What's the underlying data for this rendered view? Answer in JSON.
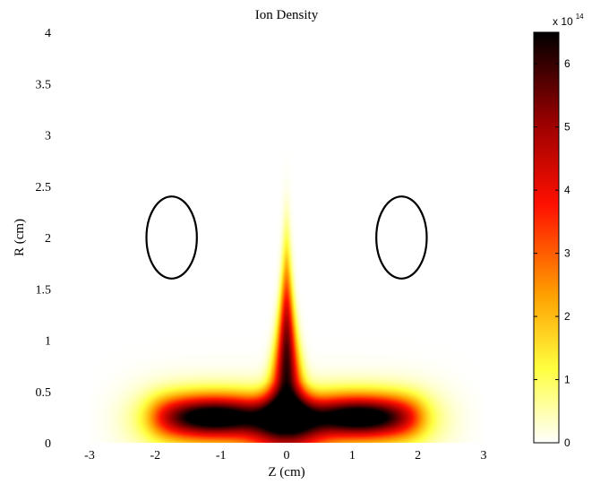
{
  "chart_data": {
    "type": "heatmap",
    "title": "Ion Density",
    "xlabel": "Z (cm)",
    "ylabel": "R (cm)",
    "xlim": [
      -3,
      3
    ],
    "ylim": [
      0,
      4
    ],
    "x_ticks": [
      "-3",
      "-2",
      "-1",
      "0",
      "1",
      "2",
      "3"
    ],
    "y_ticks": [
      "0",
      "0.5",
      "1",
      "1.5",
      "2",
      "2.5",
      "3",
      "3.5",
      "4"
    ],
    "colorbar": {
      "range": [
        0,
        6.5
      ],
      "ticks": [
        "0",
        "1",
        "2",
        "3",
        "4",
        "5",
        "6"
      ],
      "multiplier_base": "x 10",
      "multiplier_exponent": "14",
      "colormap": "hot-reversed",
      "colors": [
        "#ffffff",
        "#ffff00",
        "#ff8000",
        "#ff0000",
        "#800000",
        "#000000"
      ]
    },
    "peak_density": 6.5,
    "features": [
      {
        "kind": "radial-column",
        "z": 0,
        "r_range": [
          0.2,
          3.0
        ],
        "peak": 6.0,
        "peak_r": 0.75
      },
      {
        "kind": "axial-band",
        "z_range": [
          -2.6,
          2.6
        ],
        "r": 0.25,
        "peak": 5.6
      }
    ],
    "coils": [
      {
        "shape": "ellipse",
        "z_center": -1.75,
        "r_center": 2.0,
        "z_half_width": 0.4,
        "r_half_height": 0.4
      },
      {
        "shape": "ellipse",
        "z_center": 1.75,
        "r_center": 2.0,
        "z_half_width": 0.4,
        "r_half_height": 0.4
      }
    ]
  }
}
